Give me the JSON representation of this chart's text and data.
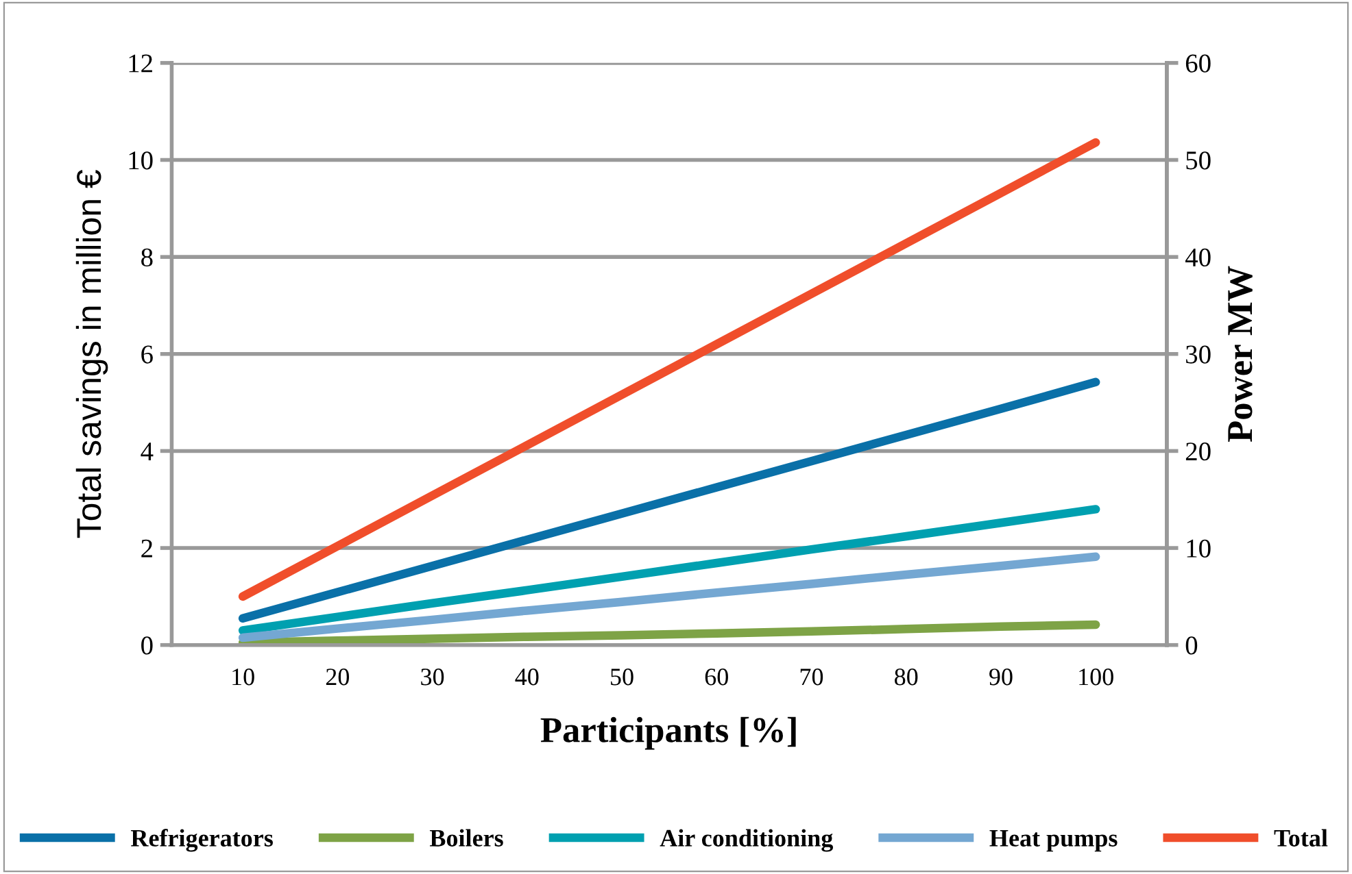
{
  "chart_data": {
    "type": "line",
    "xlabel": "Participants [%]",
    "ylabel": "Total savings in million €",
    "y2label": "Power MW",
    "categories": [
      "10",
      "20",
      "30",
      "40",
      "50",
      "60",
      "70",
      "80",
      "90",
      "100"
    ],
    "ylim": [
      0,
      12
    ],
    "yticks": [
      0,
      2,
      4,
      6,
      8,
      10,
      12
    ],
    "y2lim": [
      0,
      60
    ],
    "y2ticks": [
      0,
      10,
      20,
      30,
      40,
      50,
      60
    ],
    "grid": "y",
    "legend": "bottom",
    "marker": "none",
    "line_style": "solid",
    "series": [
      {
        "name": "Refrigerators",
        "color": "#0a70a8",
        "values": [
          0.55,
          1.09,
          1.63,
          2.17,
          2.71,
          3.25,
          3.79,
          4.33,
          4.87,
          5.42
        ]
      },
      {
        "name": "Boilers",
        "color": "#7ea346",
        "values": [
          0.05,
          0.09,
          0.13,
          0.17,
          0.2,
          0.24,
          0.28,
          0.33,
          0.38,
          0.42
        ]
      },
      {
        "name": "Air conditioning",
        "color": "#00a0b0",
        "values": [
          0.3,
          0.58,
          0.86,
          1.13,
          1.41,
          1.69,
          1.97,
          2.24,
          2.52,
          2.8
        ]
      },
      {
        "name": "Heat pumps",
        "color": "#74a7d2",
        "values": [
          0.15,
          0.34,
          0.52,
          0.71,
          0.89,
          1.08,
          1.26,
          1.45,
          1.63,
          1.82
        ]
      },
      {
        "name": "Total",
        "color": "#f04e2b",
        "values": [
          1.0,
          2.04,
          3.08,
          4.12,
          5.16,
          6.2,
          7.24,
          8.28,
          9.32,
          10.36
        ]
      }
    ]
  }
}
